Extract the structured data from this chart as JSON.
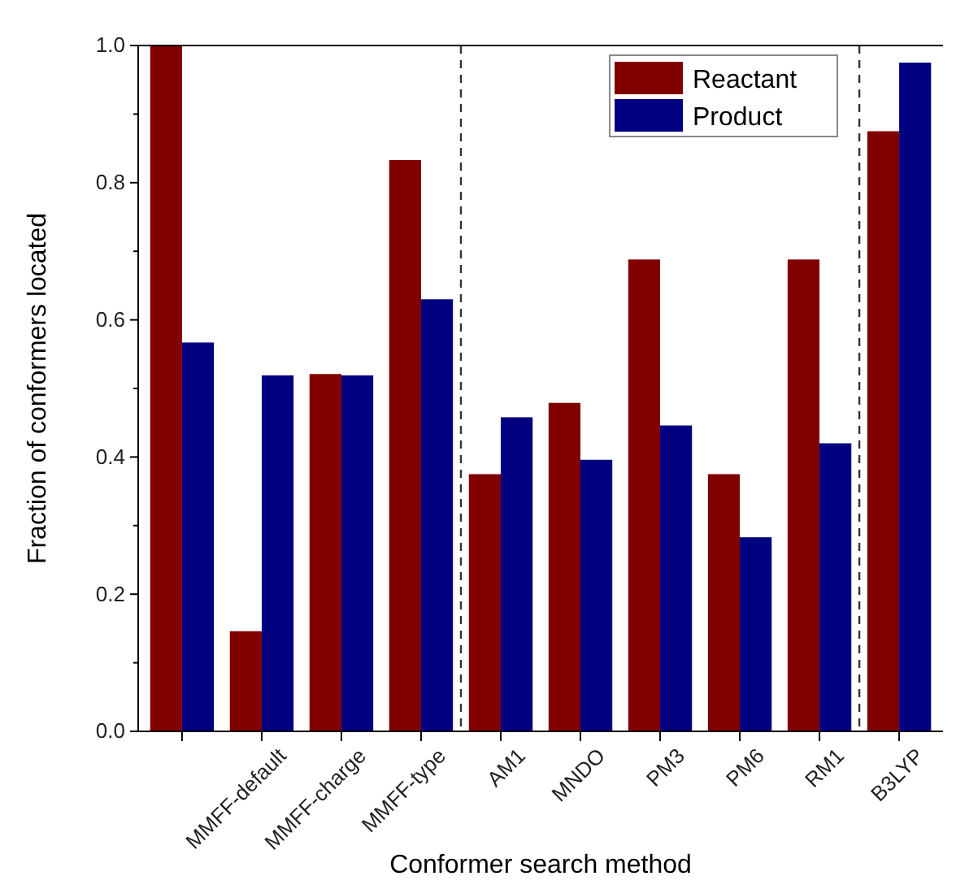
{
  "chart_data": {
    "type": "bar",
    "xlabel": "Conformer search method",
    "ylabel": "Fraction of conformers located",
    "categories": [
      null,
      "MMFF-default",
      "MMFF-charge",
      "MMFF-type",
      "AM1",
      "MNDO",
      "PM3",
      "PM6",
      "RM1",
      "B3LYP"
    ],
    "series": [
      {
        "name": "Reactant",
        "color": "#800000",
        "values": [
          1.0,
          0.146,
          0.521,
          0.833,
          0.375,
          0.479,
          0.688,
          0.375,
          0.688,
          0.875
        ]
      },
      {
        "name": "Product",
        "color": "#000080",
        "values": [
          0.567,
          0.519,
          0.519,
          0.63,
          0.458,
          0.396,
          0.446,
          0.283,
          0.42,
          0.975
        ]
      }
    ],
    "ylim": [
      0,
      1.0
    ],
    "yticks": [
      {
        "value": 0,
        "label": "0.0"
      },
      {
        "value": 0.1,
        "label": null
      },
      {
        "value": 0.2,
        "label": "0.2"
      },
      {
        "value": 0.3,
        "label": null
      },
      {
        "value": 0.4,
        "label": "0.4"
      },
      {
        "value": 0.5,
        "label": null
      },
      {
        "value": 0.6,
        "label": "0.6"
      },
      {
        "value": 0.7,
        "label": null
      },
      {
        "value": 0.8,
        "label": "0.8"
      },
      {
        "value": 0.9,
        "label": null
      },
      {
        "value": 1.0,
        "label": "1.0"
      }
    ],
    "legend": "top right",
    "grid": false
  }
}
